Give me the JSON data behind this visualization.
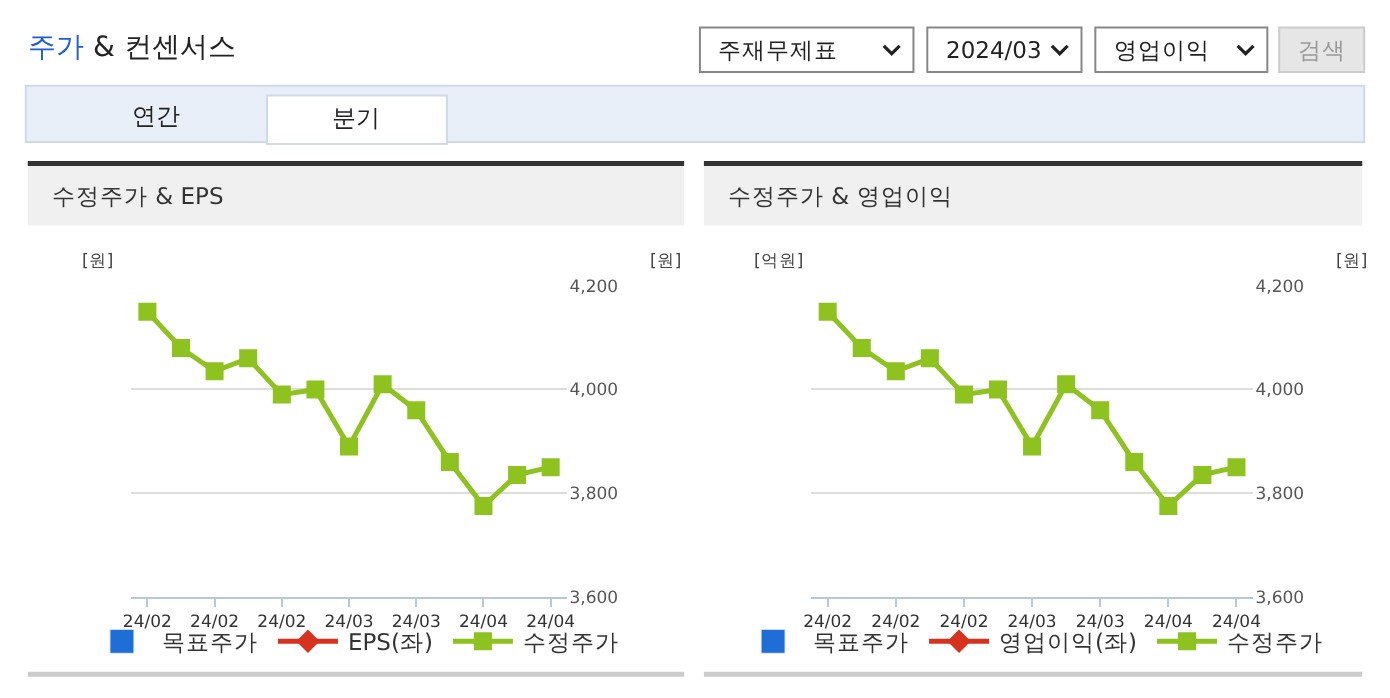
{
  "chart_data": [
    {
      "type": "other",
      "title": "주가 & 컨센서스",
      "annotations": [
        "주재무제표",
        "2024/03",
        "영업이익",
        "검색",
        "연간",
        "분기"
      ]
    },
    {
      "type": "line",
      "title": "수정주가 & EPS",
      "ylabel": "[원]",
      "y2label": "[원]",
      "categories": [
        "24/02",
        null,
        "24/02",
        null,
        "24/02",
        null,
        "24/03",
        null,
        "24/03",
        null,
        "24/04",
        null,
        "24/04"
      ],
      "series": [
        {
          "name": "목표주가",
          "type": "bar",
          "color": "#1f6ed8",
          "values": [
            null,
            null,
            null,
            null,
            null,
            null,
            null,
            null,
            null,
            null,
            null,
            null,
            null
          ]
        },
        {
          "name": "EPS(좌)",
          "color": "#d7321e",
          "marker": "diamond",
          "values": [
            null,
            null,
            null,
            null,
            null,
            null,
            null,
            null,
            null,
            null,
            null,
            null,
            null
          ]
        },
        {
          "name": "수정주가",
          "color": "#8dc21f",
          "marker": "square",
          "axis": "y2",
          "values": [
            4150,
            4080,
            4035,
            4060,
            3990,
            4000,
            3890,
            4010,
            3960,
            3860,
            3775,
            3835,
            3850
          ]
        }
      ],
      "y2lim": [
        3600,
        4200
      ],
      "y2ticks": [
        {
          "value": 3600,
          "label": "3,600"
        },
        {
          "value": 3800,
          "label": "3,800"
        },
        {
          "value": 4000,
          "label": "4,000"
        },
        {
          "value": 4200,
          "label": "4,200"
        }
      ],
      "grid": "y",
      "legend": "bottom"
    },
    {
      "type": "line",
      "title": "수정주가 & 영업이익",
      "ylabel": "[억원]",
      "y2label": "[원]",
      "categories": [
        "24/02",
        null,
        "24/02",
        null,
        "24/02",
        null,
        "24/03",
        null,
        "24/03",
        null,
        "24/04",
        null,
        "24/04"
      ],
      "series": [
        {
          "name": "목표주가",
          "type": "bar",
          "color": "#1f6ed8",
          "values": [
            null,
            null,
            null,
            null,
            null,
            null,
            null,
            null,
            null,
            null,
            null,
            null,
            null
          ]
        },
        {
          "name": "영업이익(좌)",
          "color": "#d7321e",
          "marker": "diamond",
          "values": [
            null,
            null,
            null,
            null,
            null,
            null,
            null,
            null,
            null,
            null,
            null,
            null,
            null
          ]
        },
        {
          "name": "수정주가",
          "color": "#8dc21f",
          "marker": "square",
          "axis": "y2",
          "values": [
            4150,
            4080,
            4035,
            4060,
            3990,
            4000,
            3890,
            4010,
            3960,
            3860,
            3775,
            3835,
            3850
          ]
        }
      ],
      "y2lim": [
        3600,
        4200
      ],
      "y2ticks": [
        {
          "value": 3600,
          "label": "3,600"
        },
        {
          "value": 3800,
          "label": "3,800"
        },
        {
          "value": 4000,
          "label": "4,000"
        },
        {
          "value": 4200,
          "label": "4,200"
        }
      ],
      "grid": "y",
      "legend": "bottom"
    }
  ]
}
